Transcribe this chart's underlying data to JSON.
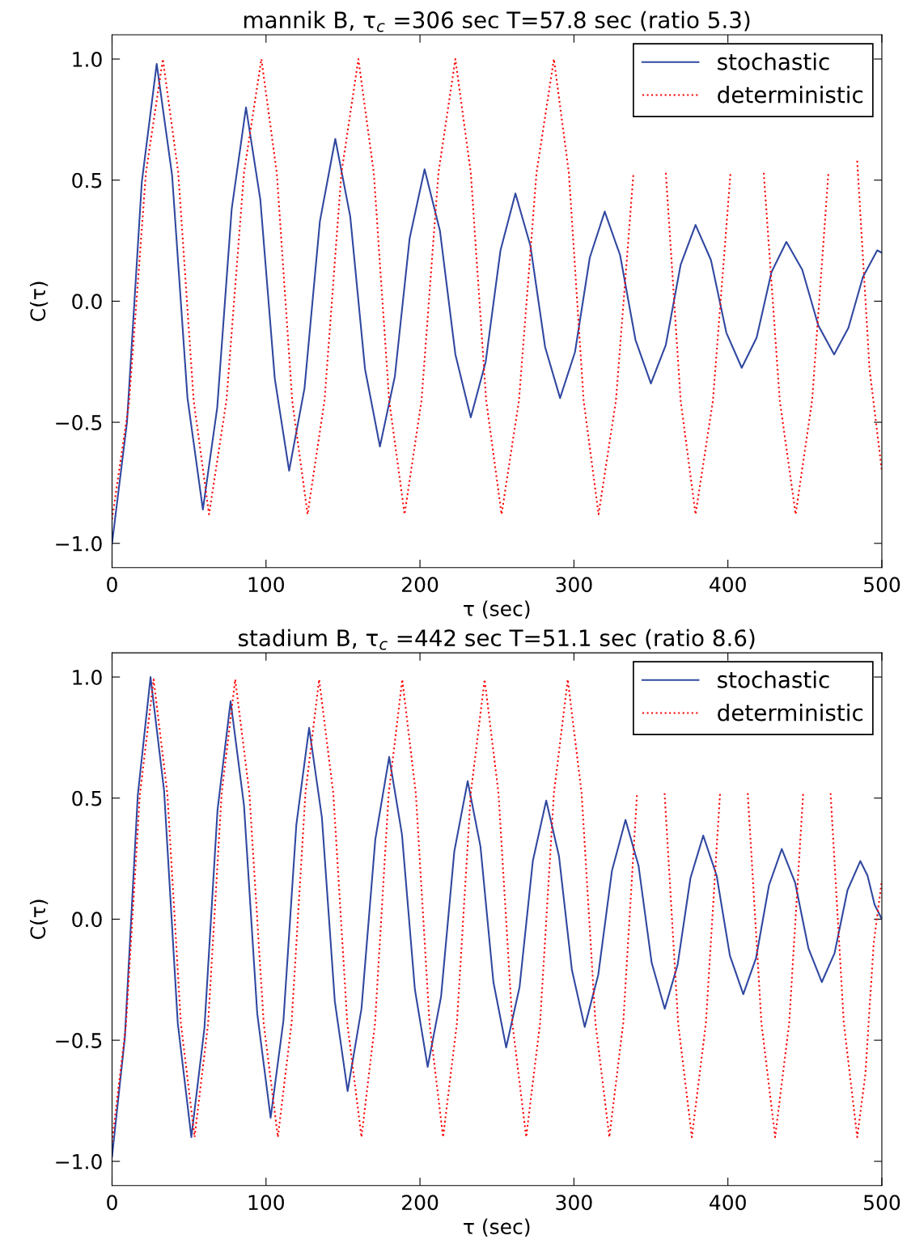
{
  "chart_data": [
    {
      "type": "line",
      "title": "mannik B, τ$_{c}$ =306 sec T=57.8 sec (ratio 5.3)",
      "xlabel": "τ (sec)",
      "ylabel": "C(τ)",
      "xlim": [
        0,
        500
      ],
      "ylim": [
        -1.1,
        1.1
      ],
      "xticks": [
        0,
        100,
        200,
        300,
        400,
        500
      ],
      "yticks": [
        {
          "value": -1.0,
          "label": "−1.0"
        },
        {
          "value": -0.5,
          "label": "−0.5"
        },
        {
          "value": 0.0,
          "label": "0.0"
        },
        {
          "value": 0.5,
          "label": "0.5"
        },
        {
          "value": 1.0,
          "label": "1.0"
        }
      ],
      "legend": "top right",
      "grid": false,
      "marker": "none",
      "series": [
        {
          "name": "stochastic",
          "color": "#3048a0",
          "line_style": "solid",
          "x": [
            0,
            9.7,
            19.3,
            29,
            39,
            49,
            59,
            68.3,
            77.7,
            87,
            96.3,
            105.7,
            115,
            125,
            135,
            145,
            154.7,
            164.3,
            174,
            183.7,
            193.3,
            203,
            213,
            223,
            233,
            242.7,
            252.3,
            262,
            271.7,
            281.3,
            291,
            300.7,
            310.3,
            320,
            330,
            340,
            350,
            359.7,
            369.3,
            379,
            389,
            399,
            409,
            418.7,
            428.3,
            438,
            448.3,
            458.7,
            469,
            478.3,
            487.7,
            497,
            500
          ],
          "values": [
            -1.0,
            -0.5,
            0.49,
            0.98,
            0.52,
            -0.4,
            -0.86,
            -0.44,
            0.38,
            0.8,
            0.42,
            -0.32,
            -0.7,
            -0.36,
            0.33,
            0.67,
            0.35,
            -0.28,
            -0.6,
            -0.31,
            0.26,
            0.545,
            0.29,
            -0.22,
            -0.48,
            -0.25,
            0.21,
            0.445,
            0.23,
            -0.19,
            -0.4,
            -0.21,
            0.18,
            0.37,
            0.19,
            -0.16,
            -0.34,
            -0.18,
            0.15,
            0.315,
            0.17,
            -0.13,
            -0.275,
            -0.15,
            0.12,
            0.245,
            0.13,
            -0.1,
            -0.22,
            -0.11,
            0.1,
            0.21,
            0.2
          ]
        },
        {
          "name": "deterministic",
          "color": "#ff0000",
          "line_style": "dotted",
          "x": [
            0,
            11,
            22,
            33,
            43,
            53,
            63,
            74.3,
            85.7,
            97,
            107,
            117,
            127,
            138,
            149,
            160,
            170,
            180,
            190,
            201,
            212,
            223,
            233,
            243,
            253,
            264.3,
            275.7,
            287,
            296.7,
            306.3,
            316,
            327.3,
            338.7,
            350,
            359.7,
            369.3,
            379,
            390.3,
            401.7,
            413,
            423.3,
            433.7,
            444,
            454.7,
            465.3,
            476,
            484,
            492,
            500
          ],
          "values": [
            -0.9,
            -0.42,
            0.53,
            1.0,
            0.53,
            -0.41,
            -0.88,
            -0.41,
            0.53,
            1.0,
            0.53,
            -0.41,
            -0.88,
            -0.41,
            0.53,
            1.0,
            0.53,
            -0.41,
            -0.88,
            -0.41,
            0.53,
            1.0,
            0.53,
            -0.41,
            -0.88,
            -0.41,
            0.53,
            1.0,
            0.53,
            -0.41,
            -0.88,
            -0.41,
            0.53,
            null,
            0.53,
            -0.41,
            -0.88,
            -0.41,
            0.53,
            null,
            0.53,
            -0.41,
            -0.88,
            -0.41,
            0.53,
            null,
            0.58,
            -0.28,
            -0.7
          ]
        }
      ]
    },
    {
      "type": "line",
      "title": "stadium B, τ$_{c}$ =442 sec T=51.1 sec (ratio 8.6)",
      "xlabel": "τ (sec)",
      "ylabel": "C(τ)",
      "xlim": [
        0,
        500
      ],
      "ylim": [
        -1.1,
        1.1
      ],
      "xticks": [
        0,
        100,
        200,
        300,
        400,
        500
      ],
      "yticks": [
        {
          "value": -1.0,
          "label": "−1.0"
        },
        {
          "value": -0.5,
          "label": "−0.5"
        },
        {
          "value": 0.0,
          "label": "0.0"
        },
        {
          "value": 0.5,
          "label": "0.5"
        },
        {
          "value": 1.0,
          "label": "1.0"
        }
      ],
      "legend": "top right",
      "grid": false,
      "marker": "none",
      "series": [
        {
          "name": "stochastic",
          "color": "#3048a0",
          "line_style": "solid",
          "x": [
            0,
            8.3,
            16.7,
            25,
            33.8,
            42.7,
            51.5,
            60,
            68.5,
            77,
            85.7,
            94.3,
            103,
            111.3,
            119.7,
            128,
            136.3,
            144.7,
            153,
            162,
            171,
            180,
            188.3,
            196.7,
            205,
            213.7,
            222.3,
            231,
            239.3,
            247.7,
            256,
            264.7,
            273.3,
            282,
            290.3,
            298.7,
            307,
            315.8,
            324.7,
            333.5,
            342,
            350.5,
            359,
            367.3,
            375.7,
            384,
            392.7,
            401.3,
            410,
            418.3,
            426.7,
            435,
            443.7,
            452.3,
            461,
            469.3,
            477.7,
            486,
            490.7,
            495.3,
            500
          ],
          "values": [
            -0.98,
            -0.49,
            0.51,
            1.0,
            0.53,
            -0.43,
            -0.9,
            -0.45,
            0.45,
            0.9,
            0.47,
            -0.39,
            -0.82,
            -0.42,
            0.39,
            0.79,
            0.42,
            -0.34,
            -0.71,
            -0.37,
            0.33,
            0.67,
            0.35,
            -0.29,
            -0.61,
            -0.32,
            0.28,
            0.57,
            0.3,
            -0.26,
            -0.53,
            -0.28,
            0.24,
            0.49,
            0.26,
            -0.21,
            -0.445,
            -0.23,
            0.2,
            0.41,
            0.22,
            -0.18,
            -0.37,
            -0.19,
            0.17,
            0.345,
            0.18,
            -0.15,
            -0.31,
            -0.16,
            0.14,
            0.29,
            0.15,
            -0.12,
            -0.26,
            -0.14,
            0.12,
            0.24,
            0.18,
            0.06,
            0.0
          ]
        },
        {
          "name": "deterministic",
          "color": "#ff0000",
          "line_style": "dotted",
          "x": [
            0,
            9,
            18,
            27,
            35.9,
            44.7,
            53.6,
            62.4,
            71.2,
            80,
            89.2,
            98.5,
            107.7,
            116.6,
            125.6,
            134.5,
            143.7,
            152.8,
            162,
            170.8,
            179.7,
            188.5,
            197.3,
            206.2,
            215,
            224,
            233,
            242,
            251,
            260,
            269,
            278,
            287,
            296,
            305,
            314,
            323,
            332,
            341,
            350,
            358.9,
            367.7,
            376.6,
            385.7,
            394.9,
            404,
            412.9,
            421.8,
            430.7,
            439.8,
            448.9,
            458,
            466.7,
            475.3,
            484,
            489.3,
            494.7,
            500
          ],
          "values": [
            -0.92,
            -0.44,
            0.51,
            0.99,
            0.52,
            -0.43,
            -0.9,
            -0.43,
            0.52,
            0.99,
            0.52,
            -0.43,
            -0.9,
            -0.43,
            0.52,
            0.99,
            0.52,
            -0.43,
            -0.9,
            -0.43,
            0.52,
            0.99,
            0.52,
            -0.43,
            -0.9,
            -0.43,
            0.52,
            0.99,
            0.52,
            -0.43,
            -0.9,
            -0.43,
            0.52,
            0.99,
            0.52,
            -0.43,
            -0.9,
            -0.43,
            0.52,
            null,
            0.52,
            -0.43,
            -0.9,
            -0.43,
            0.52,
            null,
            0.52,
            -0.43,
            -0.9,
            -0.43,
            0.52,
            null,
            0.52,
            -0.43,
            -0.9,
            -0.64,
            -0.1,
            0.16
          ]
        }
      ]
    }
  ]
}
